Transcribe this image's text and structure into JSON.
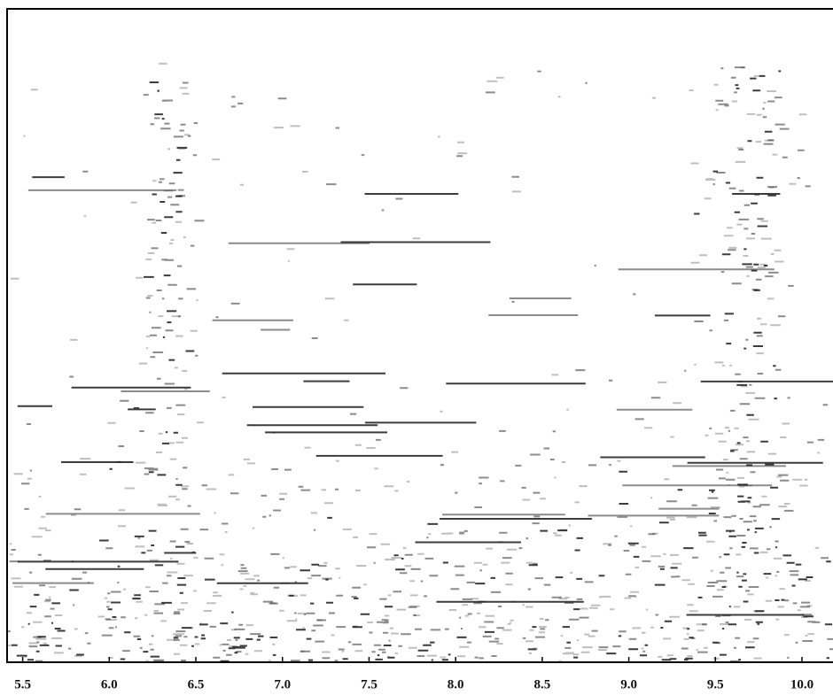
{
  "chart_data": {
    "type": "intensity-map",
    "xlim": [
      5.41,
      10.22
    ],
    "xticks": [
      5.5,
      {
        "value": 6.0,
        "label": "6.0"
      },
      6.5,
      {
        "value": 7.0,
        "label": "7.0"
      },
      7.5,
      {
        "value": 8.0,
        "label": "8.0"
      },
      8.5,
      {
        "value": 9.0,
        "label": "9.0"
      },
      9.5,
      {
        "value": 10.0,
        "label": "10.0"
      }
    ],
    "color": "#1a1a1a"
  }
}
